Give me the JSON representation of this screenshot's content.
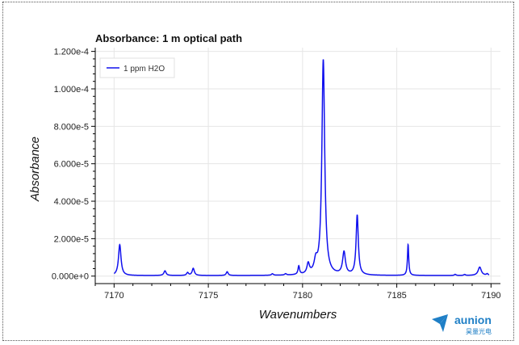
{
  "chart_data": {
    "type": "line",
    "title": "Absorbance: 1 m optical path",
    "xlabel": "Wavenumbers",
    "ylabel": "Absorbance",
    "xlim": [
      7169.0,
      7190.5
    ],
    "ylim": [
      -4e-06,
      0.000122
    ],
    "x_ticks": [
      7170,
      7175,
      7180,
      7185,
      7190
    ],
    "x_tick_labels": [
      "7170",
      "7175",
      "7180",
      "7185",
      "7190"
    ],
    "y_ticks": [
      0,
      2e-05,
      4e-05,
      6e-05,
      8e-05,
      0.0001,
      0.00012
    ],
    "y_tick_labels": [
      "0.000e+0",
      "2.000e-5",
      "4.000e-5",
      "6.000e-5",
      "8.000e-5",
      "1.000e-4",
      "1.200e-4"
    ],
    "grid": true,
    "legend_position": "top-left",
    "series": [
      {
        "name": "1 ppm H2O",
        "color": "#1010ee",
        "baseline": 3e-07,
        "peaks": [
          {
            "x": 7170.3,
            "height": 1.65e-05,
            "width": 0.08
          },
          {
            "x": 7172.7,
            "height": 2.5e-06,
            "width": 0.07
          },
          {
            "x": 7173.9,
            "height": 1.5e-06,
            "width": 0.06
          },
          {
            "x": 7174.2,
            "height": 3.8e-06,
            "width": 0.07
          },
          {
            "x": 7176.0,
            "height": 2e-06,
            "width": 0.06
          },
          {
            "x": 7178.4,
            "height": 8e-07,
            "width": 0.06
          },
          {
            "x": 7179.1,
            "height": 7e-07,
            "width": 0.06
          },
          {
            "x": 7179.8,
            "height": 4.5e-06,
            "width": 0.05
          },
          {
            "x": 7180.3,
            "height": 5.5e-06,
            "width": 0.08
          },
          {
            "x": 7180.7,
            "height": 6e-06,
            "width": 0.1
          },
          {
            "x": 7181.1,
            "height": 0.000115,
            "width": 0.09
          },
          {
            "x": 7182.2,
            "height": 1.2e-05,
            "width": 0.09
          },
          {
            "x": 7182.9,
            "height": 3.2e-05,
            "width": 0.07
          },
          {
            "x": 7185.6,
            "height": 1.65e-05,
            "width": 0.04
          },
          {
            "x": 7188.1,
            "height": 6e-07,
            "width": 0.05
          },
          {
            "x": 7188.6,
            "height": 5e-07,
            "width": 0.05
          },
          {
            "x": 7189.4,
            "height": 4.5e-06,
            "width": 0.1
          },
          {
            "x": 7189.8,
            "height": 8e-07,
            "width": 0.06
          }
        ]
      }
    ]
  },
  "watermark": {
    "brand": "aunion",
    "subtitle": "昊量光电",
    "color": "#1f7fc6"
  }
}
